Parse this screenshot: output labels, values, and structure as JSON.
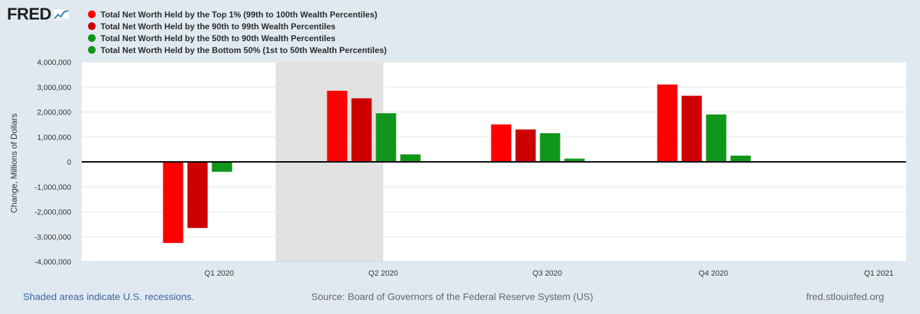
{
  "logo": {
    "text": "FRED"
  },
  "chart_data": {
    "type": "bar",
    "ylabel": "Change, Millions of Dollars",
    "ylim": [
      -4000000,
      4000000
    ],
    "yticks": [
      4000000,
      3000000,
      2000000,
      1000000,
      0,
      -1000000,
      -2000000,
      -3000000,
      -4000000
    ],
    "ytick_labels": [
      "4,000,000",
      "3,000,000",
      "2,000,000",
      "1,000,000",
      "0",
      "-1,000,000",
      "-2,000,000",
      "-3,000,000",
      "-4,000,000"
    ],
    "categories": [
      "Q1 2020",
      "Q2 2020",
      "Q3 2020",
      "Q4 2020",
      "Q1 2021"
    ],
    "series": [
      {
        "name": "Total Net Worth Held by the Top 1% (99th to 100th Wealth Percentiles)",
        "color": "#ff0000",
        "values": [
          -3250000,
          2850000,
          1500000,
          3100000,
          null
        ]
      },
      {
        "name": "Total Net Worth Held by the 90th to 99th Wealth Percentiles",
        "color": "#cc0000",
        "values": [
          -2650000,
          2550000,
          1300000,
          2650000,
          null
        ]
      },
      {
        "name": "Total Net Worth Held by the 50th to 90th Wealth Percentiles",
        "color": "#109618",
        "values": [
          -400000,
          1950000,
          1150000,
          1900000,
          null
        ]
      },
      {
        "name": "Total Net Worth Held by the Bottom 50% (1st to 50th Wealth Percentiles)",
        "color": "#109618",
        "values": [
          null,
          300000,
          130000,
          250000,
          null
        ]
      }
    ],
    "recession": {
      "from": "Q1 2020",
      "to": "Q2 2020"
    },
    "grid": true
  },
  "footer": {
    "recession_note": "Shaded areas indicate U.S. recessions.",
    "source": "Source: Board of Governors of the Federal Reserve System (US)",
    "site": "fred.stlouisfed.org"
  }
}
